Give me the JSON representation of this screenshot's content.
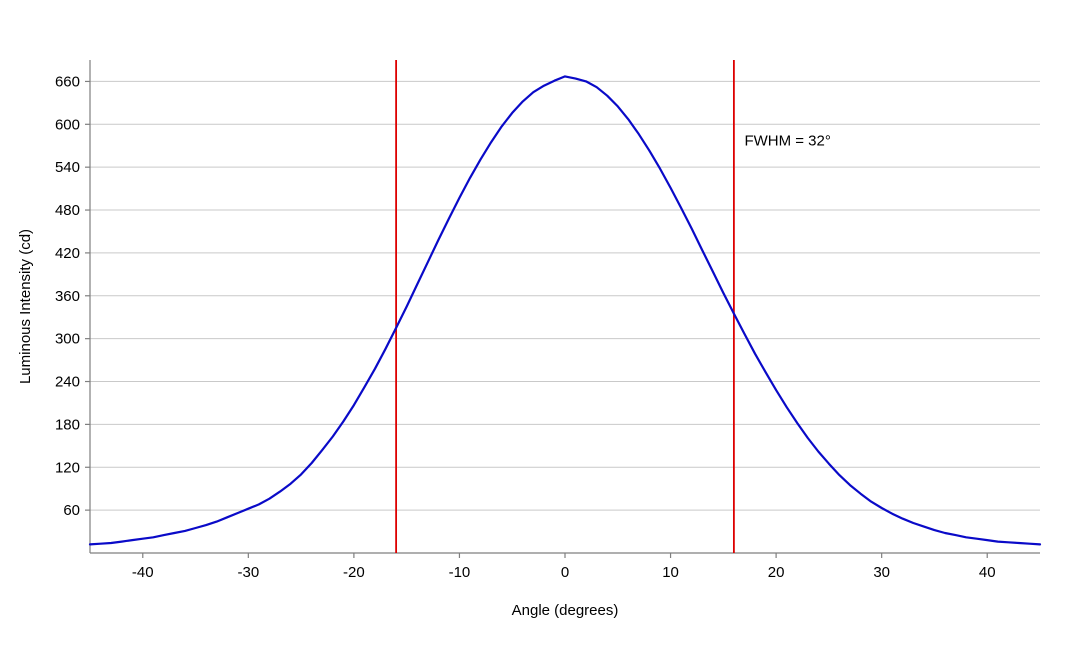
{
  "chart_data": {
    "type": "line",
    "title": "",
    "xlabel": "Angle (degrees)",
    "ylabel": "Luminous Intensity (cd)",
    "xlim": [
      -45,
      45
    ],
    "ylim": [
      0,
      690
    ],
    "x_ticks": [
      -40,
      -30,
      -20,
      -10,
      0,
      10,
      20,
      30,
      40
    ],
    "y_ticks": [
      60,
      120,
      180,
      240,
      300,
      360,
      420,
      480,
      540,
      600,
      660
    ],
    "grid": "horizontal",
    "legend": "none",
    "series": [
      {
        "name": "luminous-intensity",
        "color": "#0a0ac8",
        "x": [
          -45,
          -44,
          -43,
          -42,
          -41,
          -40,
          -39,
          -38,
          -37,
          -36,
          -35,
          -34,
          -33,
          -32,
          -31,
          -30,
          -29,
          -28,
          -27,
          -26,
          -25,
          -24,
          -23,
          -22,
          -21,
          -20,
          -19,
          -18,
          -17,
          -16,
          -15,
          -14,
          -13,
          -12,
          -11,
          -10,
          -9,
          -8,
          -7,
          -6,
          -5,
          -4,
          -3,
          -2,
          -1,
          0,
          1,
          2,
          3,
          4,
          5,
          6,
          7,
          8,
          9,
          10,
          11,
          12,
          13,
          14,
          15,
          16,
          17,
          18,
          19,
          20,
          21,
          22,
          23,
          24,
          25,
          26,
          27,
          28,
          29,
          30,
          31,
          32,
          33,
          34,
          35,
          36,
          37,
          38,
          39,
          40,
          41,
          42,
          43,
          44,
          45
        ],
        "y": [
          12,
          13,
          14,
          16,
          18,
          20,
          22,
          25,
          28,
          31,
          35,
          39,
          44,
          50,
          56,
          62,
          68,
          76,
          86,
          97,
          110,
          126,
          144,
          163,
          184,
          207,
          232,
          258,
          286,
          315,
          345,
          376,
          407,
          438,
          468,
          497,
          525,
          551,
          575,
          597,
          616,
          632,
          645,
          654,
          661,
          667,
          664,
          660,
          652,
          640,
          625,
          607,
          586,
          563,
          538,
          511,
          483,
          454,
          424,
          394,
          364,
          335,
          307,
          279,
          253,
          228,
          204,
          182,
          161,
          142,
          125,
          109,
          95,
          83,
          72,
          63,
          55,
          48,
          42,
          37,
          32,
          28,
          25,
          22,
          20,
          18,
          16,
          15,
          14,
          13,
          12
        ]
      }
    ],
    "reference_lines": [
      {
        "axis": "x",
        "value": -16,
        "color": "#dd0000",
        "label": "fwhm-left"
      },
      {
        "axis": "x",
        "value": 16,
        "color": "#dd0000",
        "label": "fwhm-right"
      }
    ],
    "annotation": {
      "text": "FWHM = 32°",
      "x": 17,
      "y": 570
    }
  }
}
